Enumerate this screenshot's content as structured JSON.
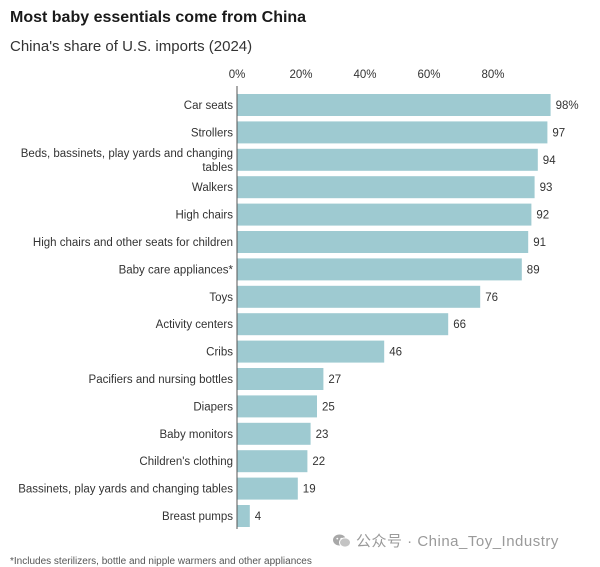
{
  "chart_data": {
    "type": "bar",
    "orientation": "horizontal",
    "title": "Most baby essentials come from China",
    "subtitle": "China's share of U.S. imports (2024)",
    "xlim": [
      0,
      100
    ],
    "x_ticks": [
      "0%",
      "20%",
      "40%",
      "60%",
      "80%"
    ],
    "categories": [
      [
        "Car seats"
      ],
      [
        "Strollers"
      ],
      [
        "Beds, bassinets, play yards and changing",
        "tables"
      ],
      [
        "Walkers"
      ],
      [
        "High chairs"
      ],
      [
        "High chairs and other seats for children"
      ],
      [
        "Baby care appliances*"
      ],
      [
        "Toys"
      ],
      [
        "Activity centers"
      ],
      [
        "Cribs"
      ],
      [
        "Pacifiers and nursing bottles"
      ],
      [
        "Diapers"
      ],
      [
        "Baby monitors"
      ],
      [
        "Children's clothing"
      ],
      [
        "Bassinets, play yards and changing tables"
      ],
      [
        "Breast pumps"
      ]
    ],
    "values": [
      98,
      97,
      94,
      93,
      92,
      91,
      89,
      76,
      66,
      46,
      27,
      25,
      23,
      22,
      19,
      4
    ],
    "value_labels": [
      "98%",
      "97",
      "94",
      "93",
      "92",
      "91",
      "89",
      "76",
      "66",
      "46",
      "27",
      "25",
      "23",
      "22",
      "19",
      "4"
    ],
    "bar_color": "#9ecad1",
    "grid": false
  },
  "watermark": "公众号 · China_Toy_Industry",
  "footnote": "*Includes sterilizers, bottle and nipple warmers and other appliances"
}
